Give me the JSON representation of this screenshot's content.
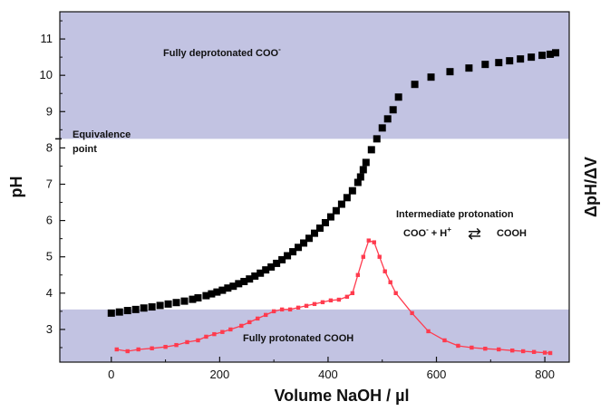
{
  "chart_data": {
    "type": "scatter",
    "xlabel": "Volume NaOH / µl",
    "ylabel": "pH",
    "y2label": "ΔpH/ΔV",
    "xlim": [
      -95,
      845
    ],
    "ylim": [
      2.1,
      11.75
    ],
    "x_ticks": [
      0,
      200,
      400,
      600,
      800
    ],
    "y_ticks": [
      3,
      4,
      5,
      6,
      7,
      8,
      9,
      10,
      11
    ],
    "grid": false,
    "colors": {
      "ph_series": "#000000",
      "derivative_series": "#ff3b4e",
      "shaded_region": "#c2c3e2",
      "y2label": "#ff3b4e"
    },
    "regions": [
      {
        "ymin": 8.25,
        "ymax": 11.75,
        "label": "Fully deprotonated COO",
        "label_sup": "-"
      },
      {
        "ymin": 2.1,
        "ymax": 3.55,
        "label": "Fully protonated COOH",
        "label_sup": ""
      }
    ],
    "annotations": {
      "equivalence_line1": "Equivalence",
      "equivalence_line2": "point",
      "equivalence_y": 8.25,
      "intermediate_title": "Intermediate protonation",
      "reaction_left": "COO",
      "reaction_left_sup1": "-",
      "reaction_plus": " + H",
      "reaction_left_sup2": "+",
      "reaction_arrow": "⇄",
      "reaction_right": "COOH"
    },
    "series": [
      {
        "marker": "square",
        "x": [
          0,
          15,
          30,
          45,
          60,
          75,
          90,
          105,
          120,
          135,
          150,
          160,
          175,
          185,
          195,
          205,
          215,
          225,
          235,
          245,
          255,
          265,
          275,
          285,
          295,
          305,
          315,
          325,
          335,
          345,
          355,
          365,
          375,
          385,
          395,
          405,
          415,
          425,
          435,
          445,
          455,
          460,
          465,
          470,
          480,
          490,
          500,
          510,
          520,
          530,
          560,
          590,
          625,
          660,
          690,
          715,
          735,
          755,
          775,
          795,
          810,
          820
        ],
        "y": [
          3.45,
          3.48,
          3.52,
          3.55,
          3.59,
          3.62,
          3.66,
          3.7,
          3.74,
          3.78,
          3.83,
          3.87,
          3.93,
          3.98,
          4.03,
          4.08,
          4.14,
          4.19,
          4.26,
          4.32,
          4.39,
          4.47,
          4.55,
          4.64,
          4.72,
          4.82,
          4.92,
          5.03,
          5.14,
          5.26,
          5.38,
          5.51,
          5.65,
          5.79,
          5.94,
          6.1,
          6.27,
          6.45,
          6.63,
          6.82,
          7.05,
          7.2,
          7.4,
          7.6,
          7.95,
          8.25,
          8.55,
          8.8,
          9.05,
          9.4,
          9.75,
          9.95,
          10.1,
          10.2,
          10.3,
          10.35,
          10.4,
          10.45,
          10.5,
          10.55,
          10.58,
          10.62
        ]
      },
      {
        "marker": "small-square-line",
        "x": [
          10,
          30,
          50,
          75,
          100,
          120,
          140,
          160,
          175,
          190,
          205,
          220,
          240,
          255,
          270,
          285,
          300,
          315,
          330,
          345,
          360,
          375,
          390,
          405,
          420,
          435,
          445,
          455,
          465,
          475,
          485,
          495,
          505,
          515,
          525,
          555,
          585,
          615,
          640,
          665,
          690,
          715,
          740,
          760,
          780,
          800,
          810
        ],
        "y": [
          2.45,
          2.4,
          2.45,
          2.48,
          2.52,
          2.57,
          2.65,
          2.7,
          2.8,
          2.87,
          2.93,
          3.0,
          3.1,
          3.2,
          3.3,
          3.4,
          3.5,
          3.55,
          3.55,
          3.6,
          3.65,
          3.7,
          3.75,
          3.8,
          3.82,
          3.9,
          4.0,
          4.5,
          5.0,
          5.45,
          5.4,
          5.0,
          4.6,
          4.3,
          4.0,
          3.45,
          2.95,
          2.7,
          2.55,
          2.5,
          2.47,
          2.45,
          2.42,
          2.4,
          2.38,
          2.36,
          2.35
        ]
      }
    ]
  }
}
